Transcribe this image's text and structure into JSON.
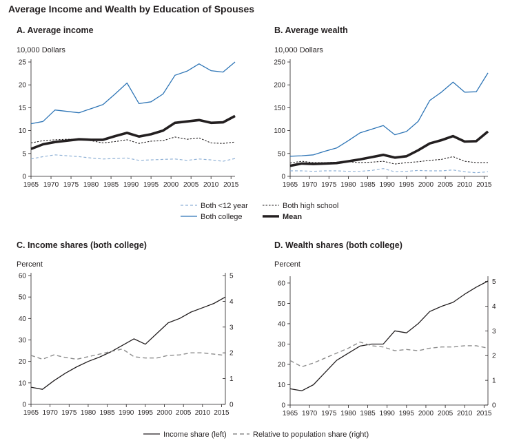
{
  "figure_title": "Average Income and Wealth by Education of Spouses",
  "colors": {
    "college_blue": "#2e75b6",
    "less12_blue": "#8fb1d6",
    "ink": "#231f20",
    "grey_dashed": "#8c8c8c"
  },
  "legend_top": {
    "items": [
      {
        "label": "Both <12 year",
        "style": "less12"
      },
      {
        "label": "Both high school",
        "style": "hs"
      },
      {
        "label": "Both college",
        "style": "college"
      },
      {
        "label": "Mean",
        "style": "mean"
      }
    ]
  },
  "legend_bottom": {
    "items": [
      {
        "label": "Income share (left)",
        "style": "share"
      },
      {
        "label": "Relative to population share (right)",
        "style": "relative"
      }
    ]
  },
  "chart_data": [
    {
      "id": "A",
      "type": "line",
      "title": "A. Average income",
      "ylabel": "10,000 Dollars",
      "xlim": [
        1965,
        2016
      ],
      "ylim": [
        0,
        25
      ],
      "xticks": [
        1965,
        1970,
        1975,
        1980,
        1985,
        1990,
        1995,
        2000,
        2005,
        2010,
        2015
      ],
      "yticks": [
        0,
        5,
        10,
        15,
        20,
        25
      ],
      "x": [
        1965,
        1968,
        1971,
        1974,
        1977,
        1980,
        1983,
        1986,
        1989,
        1992,
        1995,
        1998,
        2001,
        2004,
        2007,
        2010,
        2013,
        2016
      ],
      "series": [
        {
          "name": "Both <12 year",
          "style": "less12",
          "values": [
            3.8,
            4.3,
            4.7,
            4.5,
            4.3,
            4.0,
            3.8,
            3.9,
            4.0,
            3.5,
            3.6,
            3.7,
            3.8,
            3.5,
            3.8,
            3.6,
            3.3,
            3.9
          ]
        },
        {
          "name": "Both high school",
          "style": "hs",
          "values": [
            7.3,
            7.8,
            8.0,
            8.1,
            8.1,
            7.8,
            7.3,
            7.6,
            8.0,
            7.2,
            7.7,
            7.8,
            8.6,
            8.1,
            8.4,
            7.3,
            7.2,
            7.5
          ]
        },
        {
          "name": "Both college",
          "style": "college",
          "values": [
            11.5,
            12.0,
            14.5,
            14.2,
            13.9,
            14.8,
            15.7,
            18.0,
            20.4,
            15.9,
            16.3,
            18.0,
            22.1,
            23.0,
            24.6,
            23.1,
            22.8,
            25.0
          ]
        },
        {
          "name": "Mean",
          "style": "mean",
          "values": [
            6.0,
            7.0,
            7.5,
            7.8,
            8.1,
            8.0,
            8.0,
            8.8,
            9.5,
            8.7,
            9.2,
            10.0,
            11.7,
            12.0,
            12.3,
            11.7,
            11.8,
            13.2
          ]
        }
      ]
    },
    {
      "id": "B",
      "type": "line",
      "title": "B. Average wealth",
      "ylabel": "10,000 Dollars",
      "xlim": [
        1965,
        2016
      ],
      "ylim": [
        0,
        250
      ],
      "xticks": [
        1965,
        1970,
        1975,
        1980,
        1985,
        1990,
        1995,
        2000,
        2005,
        2010,
        2015
      ],
      "yticks": [
        0,
        50,
        100,
        150,
        200,
        250
      ],
      "x": [
        1965,
        1968,
        1971,
        1974,
        1977,
        1980,
        1983,
        1986,
        1989,
        1992,
        1995,
        1998,
        2001,
        2004,
        2007,
        2010,
        2013,
        2016
      ],
      "series": [
        {
          "name": "Both <12 year",
          "style": "less12",
          "values": [
            12,
            12,
            11,
            12,
            12,
            11,
            11,
            13,
            17,
            10,
            11,
            13,
            12,
            12,
            14,
            10,
            8,
            10
          ]
        },
        {
          "name": "Both high school",
          "style": "hs",
          "values": [
            29,
            33,
            30,
            30,
            31,
            32,
            30,
            31,
            33,
            27,
            30,
            32,
            35,
            37,
            43,
            33,
            30,
            30
          ]
        },
        {
          "name": "Both college",
          "style": "college",
          "values": [
            44,
            45,
            47,
            55,
            62,
            78,
            95,
            103,
            111,
            91,
            98,
            120,
            166,
            184,
            206,
            184,
            185,
            226
          ]
        },
        {
          "name": "Mean",
          "style": "mean",
          "values": [
            23,
            28,
            27,
            28,
            29,
            33,
            37,
            42,
            47,
            41,
            44,
            57,
            72,
            79,
            88,
            76,
            77,
            98
          ]
        }
      ]
    },
    {
      "id": "C",
      "type": "line",
      "title": "C. Income shares (both college)",
      "ylabel": "Percent",
      "xlim": [
        1965,
        2016
      ],
      "ylim": [
        0,
        60
      ],
      "ylim_right": [
        0,
        5
      ],
      "xticks": [
        1965,
        1970,
        1975,
        1980,
        1985,
        1990,
        1995,
        2000,
        2005,
        2010,
        2015
      ],
      "yticks": [
        0,
        10,
        20,
        30,
        40,
        50,
        60
      ],
      "yticks_right": [
        0,
        1,
        2,
        3,
        4,
        5
      ],
      "x": [
        1965,
        1968,
        1971,
        1974,
        1977,
        1980,
        1983,
        1986,
        1989,
        1992,
        1995,
        1998,
        2001,
        2004,
        2007,
        2010,
        2013,
        2016
      ],
      "series": [
        {
          "name": "Income share (left)",
          "style": "share",
          "axis": "left",
          "values": [
            8,
            7,
            11,
            14.5,
            17.5,
            20,
            22,
            24.5,
            27.5,
            30.5,
            28,
            33,
            38,
            40,
            43,
            45,
            47,
            50
          ]
        },
        {
          "name": "Relative to population share (right)",
          "style": "relative",
          "axis": "right",
          "values": [
            1.9,
            1.75,
            1.92,
            1.82,
            1.75,
            1.85,
            1.95,
            2.05,
            2.15,
            1.85,
            1.8,
            1.8,
            1.9,
            1.92,
            2.0,
            2.0,
            1.95,
            1.9
          ]
        }
      ]
    },
    {
      "id": "D",
      "type": "line",
      "title": "D. Wealth shares (both college)",
      "ylabel": "Percent",
      "xlim": [
        1965,
        2016
      ],
      "ylim": [
        0,
        62
      ],
      "ylim_right": [
        0,
        5.1
      ],
      "xticks": [
        1965,
        1970,
        1975,
        1980,
        1985,
        1990,
        1995,
        2000,
        2005,
        2010,
        2015
      ],
      "yticks": [
        0,
        10,
        20,
        30,
        40,
        50,
        60
      ],
      "yticks_right": [
        0,
        1,
        2,
        3,
        4,
        5
      ],
      "x": [
        1965,
        1968,
        1971,
        1974,
        1977,
        1980,
        1983,
        1986,
        1989,
        1992,
        1995,
        1998,
        2001,
        2004,
        2007,
        2010,
        2013,
        2016
      ],
      "series": [
        {
          "name": "Income share (left)",
          "style": "share",
          "axis": "left",
          "values": [
            8,
            7,
            10,
            16,
            22,
            25.5,
            29,
            30,
            30,
            36.5,
            35.5,
            40,
            46,
            48.5,
            50.5,
            54.5,
            58,
            61
          ]
        },
        {
          "name": "Relative to population share (right)",
          "style": "relative",
          "axis": "right",
          "values": [
            1.8,
            1.55,
            1.7,
            1.9,
            2.1,
            2.3,
            2.55,
            2.4,
            2.35,
            2.2,
            2.25,
            2.2,
            2.3,
            2.35,
            2.35,
            2.4,
            2.4,
            2.3
          ]
        }
      ]
    }
  ]
}
